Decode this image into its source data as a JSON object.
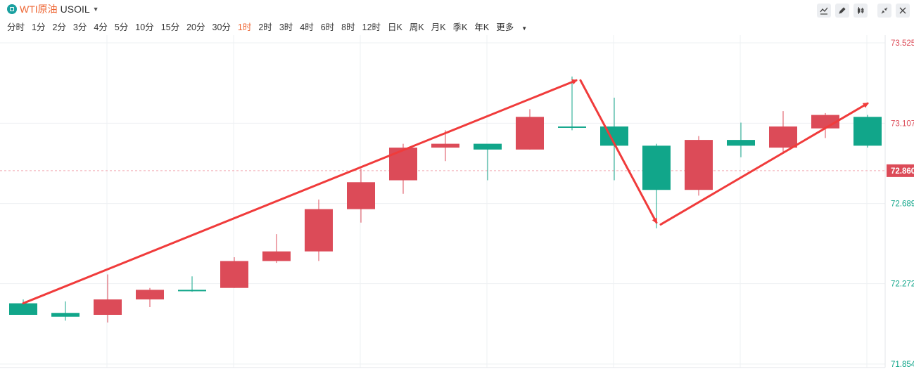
{
  "header": {
    "symbol_name": "WTI原油",
    "symbol_code": "USOIL",
    "periods": [
      "分时",
      "1分",
      "2分",
      "3分",
      "4分",
      "5分",
      "10分",
      "15分",
      "20分",
      "30分",
      "1时",
      "2时",
      "3时",
      "4时",
      "6时",
      "8时",
      "12时",
      "日K",
      "周K",
      "月K",
      "季K",
      "年K"
    ],
    "active_period": "1时",
    "more_label": "更多",
    "tools": [
      "line-draw-icon",
      "pen-icon",
      "candle-type-icon",
      "collapse-icon",
      "close-icon"
    ]
  },
  "colors": {
    "up": "#dc4b58",
    "down": "#11a68a",
    "arrow": "#f03b3b",
    "price_line": "#f2aab2",
    "grid": "#eef0f3",
    "active": "#ee6633"
  },
  "chart_data": {
    "type": "candlestick",
    "y_ticks": [
      "73.525",
      "73.107",
      "72.860",
      "72.689",
      "72.272",
      "71.854"
    ],
    "ylim": [
      71.854,
      73.525
    ],
    "current_price": "72.860",
    "candles": [
      {
        "o": 72.17,
        "c": 72.11,
        "h": 72.19,
        "l": 72.12,
        "dir": "down"
      },
      {
        "o": 72.12,
        "c": 72.1,
        "h": 72.18,
        "l": 72.08,
        "dir": "down"
      },
      {
        "o": 72.11,
        "c": 72.19,
        "h": 72.32,
        "l": 72.07,
        "dir": "up"
      },
      {
        "o": 72.19,
        "c": 72.24,
        "h": 72.25,
        "l": 72.15,
        "dir": "up"
      },
      {
        "o": 72.24,
        "c": 72.24,
        "h": 72.31,
        "l": 72.23,
        "dir": "down"
      },
      {
        "o": 72.25,
        "c": 72.39,
        "h": 72.41,
        "l": 72.25,
        "dir": "up"
      },
      {
        "o": 72.39,
        "c": 72.44,
        "h": 72.53,
        "l": 72.38,
        "dir": "up"
      },
      {
        "o": 72.44,
        "c": 72.66,
        "h": 72.71,
        "l": 72.39,
        "dir": "up"
      },
      {
        "o": 72.66,
        "c": 72.8,
        "h": 72.87,
        "l": 72.59,
        "dir": "up"
      },
      {
        "o": 72.81,
        "c": 72.98,
        "h": 73.0,
        "l": 72.74,
        "dir": "up"
      },
      {
        "o": 72.98,
        "c": 73.0,
        "h": 73.07,
        "l": 72.91,
        "dir": "up"
      },
      {
        "o": 73.0,
        "c": 72.97,
        "h": 72.99,
        "l": 72.81,
        "dir": "down"
      },
      {
        "o": 72.97,
        "c": 73.14,
        "h": 73.18,
        "l": 72.97,
        "dir": "up"
      },
      {
        "o": 73.09,
        "c": 73.09,
        "h": 73.35,
        "l": 73.07,
        "dir": "down"
      },
      {
        "o": 73.09,
        "c": 72.99,
        "h": 73.24,
        "l": 72.81,
        "dir": "down"
      },
      {
        "o": 72.99,
        "c": 72.76,
        "h": 73.0,
        "l": 72.56,
        "dir": "down"
      },
      {
        "o": 72.76,
        "c": 73.02,
        "h": 73.04,
        "l": 72.73,
        "dir": "up"
      },
      {
        "o": 73.02,
        "c": 72.99,
        "h": 73.11,
        "l": 72.93,
        "dir": "down"
      },
      {
        "o": 72.98,
        "c": 73.09,
        "h": 73.17,
        "l": 72.95,
        "dir": "up"
      },
      {
        "o": 73.08,
        "c": 73.15,
        "h": 73.16,
        "l": 73.03,
        "dir": "up"
      },
      {
        "o": 73.14,
        "c": 72.99,
        "h": 73.15,
        "l": 72.98,
        "dir": "down"
      }
    ],
    "annotations": [
      {
        "type": "arrow",
        "from": [
          0,
          72.17
        ],
        "to": [
          13.1,
          73.33
        ]
      },
      {
        "type": "arrow",
        "from": [
          13.2,
          73.33
        ],
        "to": [
          15.0,
          72.59
        ]
      },
      {
        "type": "arrow",
        "from": [
          15.1,
          72.58
        ],
        "to": [
          20.0,
          73.21
        ]
      }
    ]
  }
}
